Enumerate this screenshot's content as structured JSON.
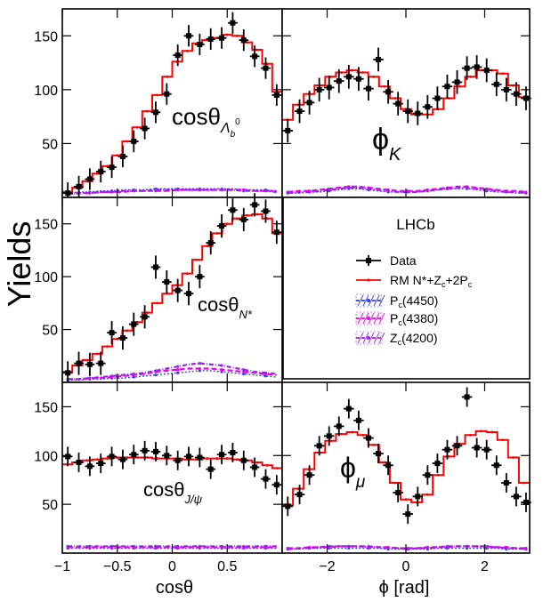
{
  "figure": {
    "y_axis_label": "Yields",
    "x_axis_labels": {
      "left": "cosθ",
      "right": "ϕ [rad]"
    },
    "experiment_label": "LHCb",
    "panel_labels": {
      "top_left": {
        "main": "cosθ",
        "sub": "Λ",
        "subsub": "b",
        "sup": "0"
      },
      "top_right": {
        "main": "ϕ",
        "sub": "K"
      },
      "mid_left": {
        "main": "cosθ",
        "sub": "N*"
      },
      "bottom_left": {
        "main": "cosθ",
        "sub": "J/ψ"
      },
      "bottom_right": {
        "main": "ϕ",
        "sub": "μ"
      }
    },
    "legend": [
      {
        "key": "data",
        "label": "Data"
      },
      {
        "key": "fit",
        "label": "RM N*+Z",
        "label_parts": [
          [
            "RM N*+Z",
            ""
          ],
          [
            "c",
            "sub"
          ],
          [
            "+2P",
            ""
          ],
          [
            "c",
            "sub"
          ]
        ]
      },
      {
        "key": "pc4450",
        "label_parts": [
          [
            "P",
            ""
          ],
          [
            "c",
            "sub"
          ],
          [
            "(4450)",
            ""
          ]
        ]
      },
      {
        "key": "pc4380",
        "label_parts": [
          [
            "P",
            ""
          ],
          [
            "c",
            "sub"
          ],
          [
            "(4380)",
            ""
          ]
        ]
      },
      {
        "key": "zc4200",
        "label_parts": [
          [
            "Z",
            ""
          ],
          [
            "c",
            "sub"
          ],
          [
            "(4200)",
            ""
          ]
        ]
      }
    ],
    "colors": {
      "data": "#000000",
      "fit": "#ff0000",
      "pc4450": "#3344dd",
      "pc4380": "#ee00ee",
      "zc4200": "#9922ee"
    }
  },
  "chart_data": [
    {
      "type": "scatter",
      "panel": "cos-theta-lambda-b",
      "xlim": [
        -1,
        1
      ],
      "ylim": [
        0,
        175
      ],
      "xticks": [
        -1,
        -0.5,
        0,
        0.5
      ],
      "yticks": [
        50,
        100,
        150
      ],
      "xtick_labels": [
        "−1",
        "−0.5",
        "0",
        "0.5"
      ],
      "ytick_labels": [
        "50",
        "100",
        "150"
      ],
      "fit_y": [
        5,
        9,
        15,
        22,
        29,
        39,
        52,
        65,
        80,
        95,
        112,
        126,
        136,
        143,
        146,
        148,
        151,
        150,
        144,
        137,
        124,
        98
      ],
      "data_x": [
        -0.95,
        -0.85,
        -0.75,
        -0.65,
        -0.55,
        -0.45,
        -0.35,
        -0.25,
        -0.15,
        -0.05,
        0.05,
        0.15,
        0.25,
        0.35,
        0.45,
        0.55,
        0.65,
        0.75,
        0.85,
        0.95
      ],
      "data_y": [
        4,
        10,
        17,
        24,
        28,
        38,
        52,
        64,
        79,
        96,
        132,
        150,
        142,
        147,
        148,
        162,
        146,
        131,
        120,
        95
      ],
      "err": 10,
      "pc4450_y": [
        4,
        5,
        5,
        6,
        6,
        7,
        7,
        7,
        8,
        8,
        8,
        8,
        8,
        8,
        8,
        8,
        7,
        7,
        7,
        6
      ],
      "pc4380_y": [
        3,
        4,
        4,
        5,
        5,
        5,
        6,
        6,
        6,
        6,
        7,
        7,
        7,
        7,
        7,
        7,
        7,
        6,
        6,
        6
      ],
      "zc4200_y": [
        3,
        4,
        4,
        5,
        5,
        6,
        6,
        6,
        7,
        7,
        7,
        7,
        7,
        7,
        7,
        7,
        6,
        6,
        6,
        5
      ]
    },
    {
      "type": "scatter",
      "panel": "phi-k",
      "xlim": [
        -3.14159,
        3.14159
      ],
      "ylim": [
        0,
        175
      ],
      "xticks": [
        -2,
        0,
        2
      ],
      "yticks": [
        50,
        100,
        150
      ],
      "xtick_labels": [
        "−2",
        "0",
        "2"
      ],
      "ytick_labels": [
        "50",
        "100",
        "150"
      ],
      "fit_y": [
        72,
        86,
        96,
        104,
        112,
        116,
        118,
        116,
        112,
        103,
        92,
        82,
        77,
        77,
        82,
        92,
        103,
        112,
        118,
        118,
        115,
        104,
        93
      ],
      "data_x": [
        -3.0,
        -2.7,
        -2.45,
        -2.2,
        -1.95,
        -1.7,
        -1.45,
        -1.2,
        -0.95,
        -0.7,
        -0.45,
        -0.2,
        0.05,
        0.3,
        0.55,
        0.8,
        1.05,
        1.3,
        1.55,
        1.8,
        2.05,
        2.3,
        2.55,
        2.8,
        3.05
      ],
      "data_y": [
        62,
        80,
        88,
        100,
        102,
        108,
        112,
        110,
        101,
        128,
        98,
        87,
        80,
        78,
        84,
        92,
        103,
        107,
        120,
        121,
        118,
        105,
        100,
        96,
        92
      ],
      "err": 11,
      "pc4450_y": [
        4,
        4,
        5,
        5,
        6,
        7,
        8,
        8,
        7,
        6,
        5,
        5,
        5,
        5,
        6,
        7,
        8,
        8,
        8,
        7,
        6,
        5,
        5,
        4,
        4
      ],
      "pc4380_y": [
        5,
        6,
        6,
        7,
        8,
        9,
        10,
        10,
        9,
        8,
        7,
        6,
        6,
        6,
        7,
        8,
        9,
        10,
        10,
        9,
        8,
        7,
        6,
        6,
        5
      ],
      "zc4200_y": [
        4,
        5,
        5,
        6,
        7,
        8,
        9,
        9,
        8,
        7,
        6,
        5,
        5,
        5,
        6,
        7,
        8,
        9,
        9,
        8,
        7,
        6,
        5,
        5,
        4
      ]
    },
    {
      "type": "scatter",
      "panel": "cos-theta-n-star",
      "xlim": [
        -1,
        1
      ],
      "ylim": [
        0,
        175
      ],
      "xticks": [
        -1,
        -0.5,
        0,
        0.5
      ],
      "yticks": [
        50,
        100,
        150
      ],
      "xtick_labels": [
        "−1",
        "−0.5",
        "0",
        "0.5"
      ],
      "ytick_labels": [
        "50",
        "100",
        "150"
      ],
      "fit_y": [
        10,
        16,
        21,
        27,
        34,
        41,
        49,
        57,
        66,
        75,
        84,
        92,
        103,
        116,
        129,
        141,
        150,
        155,
        158,
        159,
        155,
        141
      ],
      "data_x": [
        -0.95,
        -0.85,
        -0.75,
        -0.65,
        -0.55,
        -0.45,
        -0.35,
        -0.25,
        -0.15,
        -0.05,
        0.05,
        0.15,
        0.25,
        0.35,
        0.45,
        0.55,
        0.65,
        0.75,
        0.85,
        0.95
      ],
      "data_y": [
        9,
        18,
        17,
        18,
        47,
        42,
        55,
        62,
        109,
        95,
        87,
        84,
        100,
        132,
        148,
        163,
        154,
        168,
        162,
        142
      ],
      "err": 11,
      "pc4450_y": [
        2,
        2,
        3,
        3,
        4,
        4,
        5,
        6,
        7,
        8,
        9,
        10,
        11,
        11,
        10,
        9,
        8,
        7,
        6,
        5
      ],
      "pc4380_y": [
        3,
        3,
        4,
        4,
        5,
        6,
        7,
        8,
        10,
        11,
        12,
        13,
        13,
        13,
        12,
        11,
        10,
        9,
        8,
        7
      ],
      "zc4200_y": [
        3,
        3,
        4,
        5,
        6,
        7,
        8,
        9,
        11,
        13,
        15,
        17,
        18,
        17,
        16,
        14,
        12,
        10,
        9,
        8
      ]
    },
    {
      "type": "scatter",
      "panel": "cos-theta-j-psi",
      "xlim": [
        -1,
        1
      ],
      "ylim": [
        0,
        175
      ],
      "xticks": [
        -1,
        -0.5,
        0,
        0.5
      ],
      "yticks": [
        50,
        100,
        150
      ],
      "xtick_labels": [
        "−1",
        "−0.5",
        "0",
        "0.5"
      ],
      "ytick_labels": [
        "50",
        "100",
        "150"
      ],
      "fit_y": [
        91,
        93,
        95,
        96,
        97,
        98,
        98,
        98,
        98,
        97,
        97,
        97,
        96,
        96,
        97,
        97,
        97,
        96,
        95,
        93,
        90,
        87
      ],
      "data_x": [
        -0.95,
        -0.85,
        -0.75,
        -0.65,
        -0.55,
        -0.45,
        -0.35,
        -0.25,
        -0.15,
        -0.05,
        0.05,
        0.15,
        0.25,
        0.35,
        0.45,
        0.55,
        0.65,
        0.75,
        0.85,
        0.95
      ],
      "data_y": [
        99,
        93,
        89,
        92,
        99,
        96,
        101,
        105,
        104,
        100,
        95,
        99,
        98,
        86,
        101,
        103,
        95,
        88,
        76,
        70
      ],
      "err": 10,
      "pc4450_y": [
        5,
        5,
        5,
        5,
        5,
        5,
        5,
        5,
        5,
        5,
        5,
        5,
        5,
        5,
        5,
        5,
        5,
        5,
        5,
        5
      ],
      "pc4380_y": [
        6,
        6,
        6,
        6,
        6,
        6,
        6,
        6,
        6,
        6,
        6,
        6,
        6,
        6,
        6,
        6,
        6,
        6,
        6,
        6
      ],
      "zc4200_y": [
        7,
        7,
        7,
        7,
        7,
        7,
        7,
        7,
        7,
        7,
        7,
        7,
        7,
        7,
        7,
        7,
        7,
        7,
        7,
        7
      ]
    },
    {
      "type": "scatter",
      "panel": "phi-mu",
      "xlim": [
        -3.14159,
        3.14159
      ],
      "ylim": [
        0,
        175
      ],
      "xticks": [
        -2,
        0,
        2
      ],
      "yticks": [
        50,
        100,
        150
      ],
      "xtick_labels": [
        "−2",
        "0",
        "2"
      ],
      "ytick_labels": [
        "50",
        "100",
        "150"
      ],
      "fit_y": [
        49,
        66,
        86,
        103,
        115,
        122,
        124,
        121,
        111,
        93,
        72,
        55,
        52,
        60,
        80,
        99,
        112,
        121,
        125,
        124,
        116,
        98,
        72
      ],
      "data_x": [
        -3.0,
        -2.7,
        -2.45,
        -2.2,
        -1.95,
        -1.7,
        -1.45,
        -1.2,
        -0.95,
        -0.7,
        -0.45,
        -0.2,
        0.05,
        0.3,
        0.55,
        0.8,
        1.05,
        1.3,
        1.55,
        1.8,
        2.05,
        2.3,
        2.55,
        2.8,
        3.05
      ],
      "data_y": [
        48,
        60,
        80,
        110,
        120,
        130,
        148,
        136,
        118,
        102,
        90,
        62,
        40,
        58,
        80,
        92,
        106,
        110,
        160,
        108,
        106,
        90,
        72,
        58,
        52
      ],
      "err": 10,
      "pc4450_y": [
        4,
        4,
        5,
        5,
        5,
        5,
        5,
        5,
        5,
        5,
        4,
        4,
        4,
        4,
        4,
        5,
        5,
        5,
        5,
        5,
        5,
        5,
        4,
        4,
        4
      ],
      "pc4380_y": [
        5,
        5,
        6,
        6,
        7,
        7,
        7,
        7,
        7,
        6,
        6,
        5,
        5,
        5,
        6,
        6,
        7,
        7,
        7,
        7,
        7,
        6,
        6,
        5,
        5
      ],
      "zc4200_y": [
        4,
        5,
        5,
        6,
        6,
        7,
        7,
        7,
        6,
        6,
        5,
        5,
        4,
        5,
        5,
        6,
        6,
        7,
        7,
        7,
        6,
        6,
        5,
        5,
        4
      ]
    }
  ]
}
